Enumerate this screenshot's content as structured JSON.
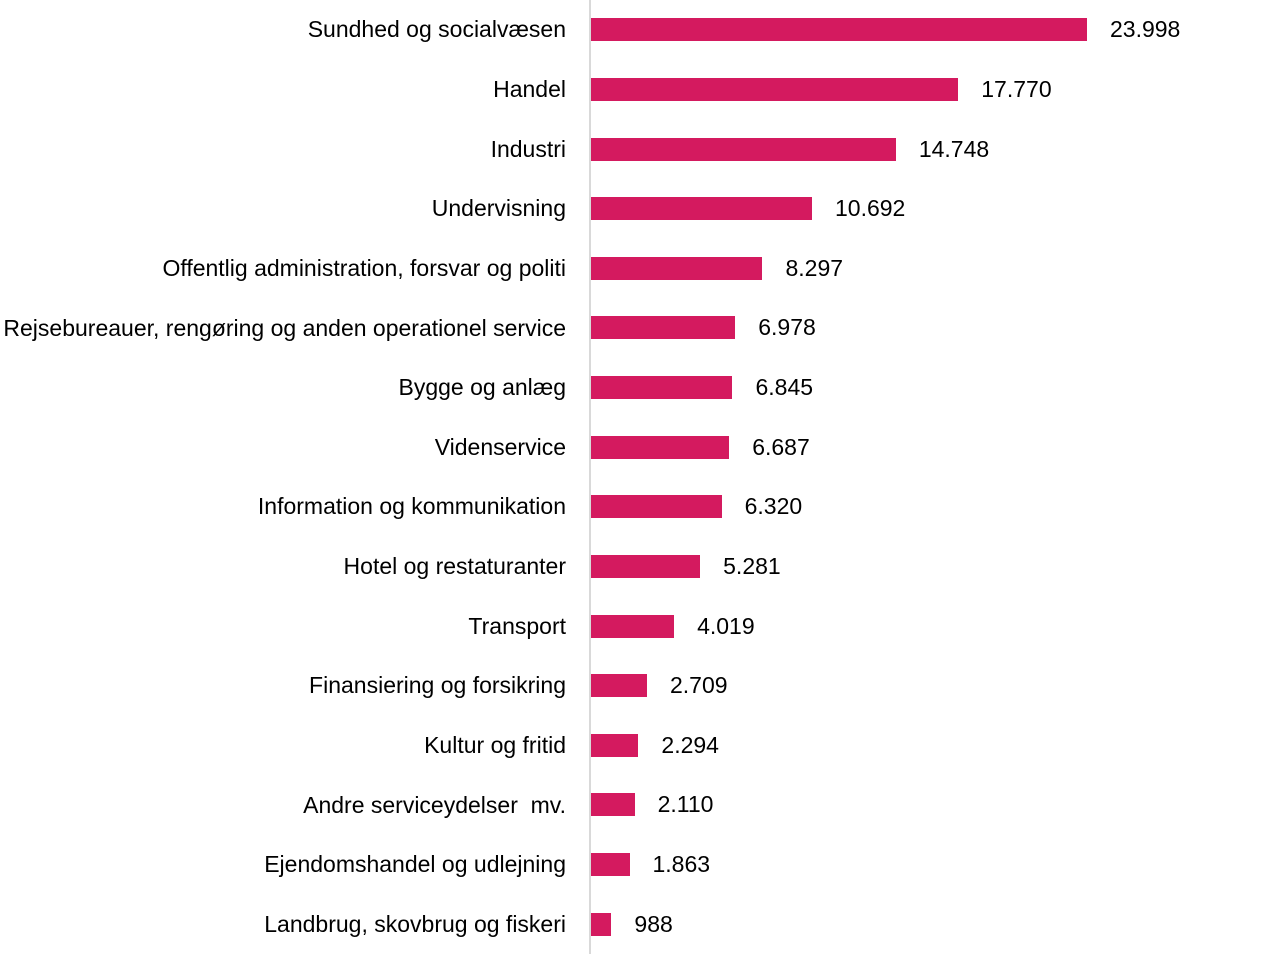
{
  "chart_data": {
    "type": "bar",
    "orientation": "horizontal",
    "title": "",
    "xlabel": "",
    "ylabel": "",
    "grid": false,
    "legend": false,
    "value_format": "da-DK thousands separator (dot)",
    "bar_color": "#d41a5f",
    "axis_line_color": "#d9d9d9",
    "xlim": [
      0,
      23998
    ],
    "categories": [
      "Sundhed og socialvæsen",
      "Handel",
      "Industri",
      "Undervisning",
      "Offentlig administration, forsvar og politi",
      "Rejsebureauer, rengøring og anden operationel service",
      "Bygge og anlæg",
      "Videnservice",
      "Information og kommunikation",
      "Hotel og restaturanter",
      "Transport",
      "Finansiering og forsikring",
      "Kultur og fritid",
      "Andre serviceydelser  mv.",
      "Ejendomshandel og udlejning",
      "Landbrug, skovbrug og fiskeri"
    ],
    "values": [
      23998,
      17770,
      14748,
      10692,
      8297,
      6978,
      6845,
      6687,
      6320,
      5281,
      4019,
      2709,
      2294,
      2110,
      1863,
      988
    ],
    "rows": [
      {
        "label": "Sundhed og socialvæsen",
        "value": 23998,
        "value_label": "23.998"
      },
      {
        "label": "Handel",
        "value": 17770,
        "value_label": "17.770"
      },
      {
        "label": "Industri",
        "value": 14748,
        "value_label": "14.748"
      },
      {
        "label": "Undervisning",
        "value": 10692,
        "value_label": "10.692"
      },
      {
        "label": "Offentlig administration, forsvar og politi",
        "value": 8297,
        "value_label": "8.297"
      },
      {
        "label": "Rejsebureauer, rengøring og anden operationel service",
        "value": 6978,
        "value_label": "6.978"
      },
      {
        "label": "Bygge og anlæg",
        "value": 6845,
        "value_label": "6.845"
      },
      {
        "label": "Videnservice",
        "value": 6687,
        "value_label": "6.687"
      },
      {
        "label": "Information og kommunikation",
        "value": 6320,
        "value_label": "6.320"
      },
      {
        "label": "Hotel og restaturanter",
        "value": 5281,
        "value_label": "5.281"
      },
      {
        "label": "Transport",
        "value": 4019,
        "value_label": "4.019"
      },
      {
        "label": "Finansiering og forsikring",
        "value": 2709,
        "value_label": "2.709"
      },
      {
        "label": "Kultur og fritid",
        "value": 2294,
        "value_label": "2.294"
      },
      {
        "label": "Andre serviceydelser  mv.",
        "value": 2110,
        "value_label": "2.110"
      },
      {
        "label": "Ejendomshandel og udlejning",
        "value": 1863,
        "value_label": "1.863"
      },
      {
        "label": "Landbrug, skovbrug og fiskeri",
        "value": 988,
        "value_label": "988"
      }
    ]
  }
}
